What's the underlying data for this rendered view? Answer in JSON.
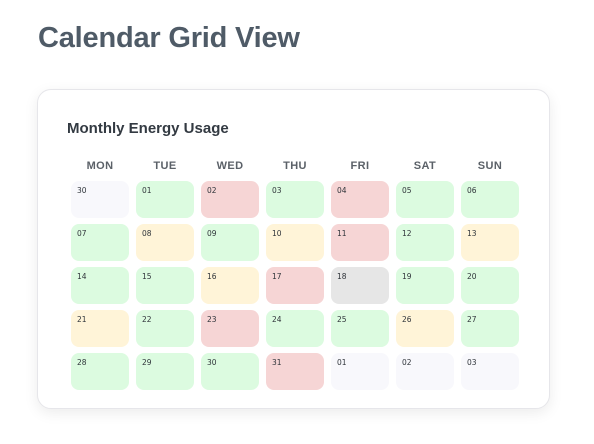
{
  "page": {
    "title": "Calendar Grid View"
  },
  "calendar": {
    "title": "Monthly Energy Usage",
    "weekdays": [
      "MON",
      "TUE",
      "WED",
      "THU",
      "FRI",
      "SAT",
      "SUN"
    ],
    "colors": {
      "low": "#dcfbe0",
      "medium": "#fff4d8",
      "high": "#f6d5d5",
      "nodata": "#e6e6e6",
      "outside": "#f8f8fc"
    },
    "days": [
      {
        "label": "30",
        "level": "outside"
      },
      {
        "label": "01",
        "level": "low"
      },
      {
        "label": "02",
        "level": "high"
      },
      {
        "label": "03",
        "level": "low"
      },
      {
        "label": "04",
        "level": "high"
      },
      {
        "label": "05",
        "level": "low"
      },
      {
        "label": "06",
        "level": "low"
      },
      {
        "label": "07",
        "level": "low"
      },
      {
        "label": "08",
        "level": "medium"
      },
      {
        "label": "09",
        "level": "low"
      },
      {
        "label": "10",
        "level": "medium"
      },
      {
        "label": "11",
        "level": "high"
      },
      {
        "label": "12",
        "level": "low"
      },
      {
        "label": "13",
        "level": "medium"
      },
      {
        "label": "14",
        "level": "low"
      },
      {
        "label": "15",
        "level": "low"
      },
      {
        "label": "16",
        "level": "medium"
      },
      {
        "label": "17",
        "level": "high"
      },
      {
        "label": "18",
        "level": "nodata"
      },
      {
        "label": "19",
        "level": "low"
      },
      {
        "label": "20",
        "level": "low"
      },
      {
        "label": "21",
        "level": "medium"
      },
      {
        "label": "22",
        "level": "low"
      },
      {
        "label": "23",
        "level": "high"
      },
      {
        "label": "24",
        "level": "low"
      },
      {
        "label": "25",
        "level": "low"
      },
      {
        "label": "26",
        "level": "medium"
      },
      {
        "label": "27",
        "level": "low"
      },
      {
        "label": "28",
        "level": "low"
      },
      {
        "label": "29",
        "level": "low"
      },
      {
        "label": "30",
        "level": "low"
      },
      {
        "label": "31",
        "level": "high"
      },
      {
        "label": "01",
        "level": "outside"
      },
      {
        "label": "02",
        "level": "outside"
      },
      {
        "label": "03",
        "level": "outside"
      }
    ]
  }
}
